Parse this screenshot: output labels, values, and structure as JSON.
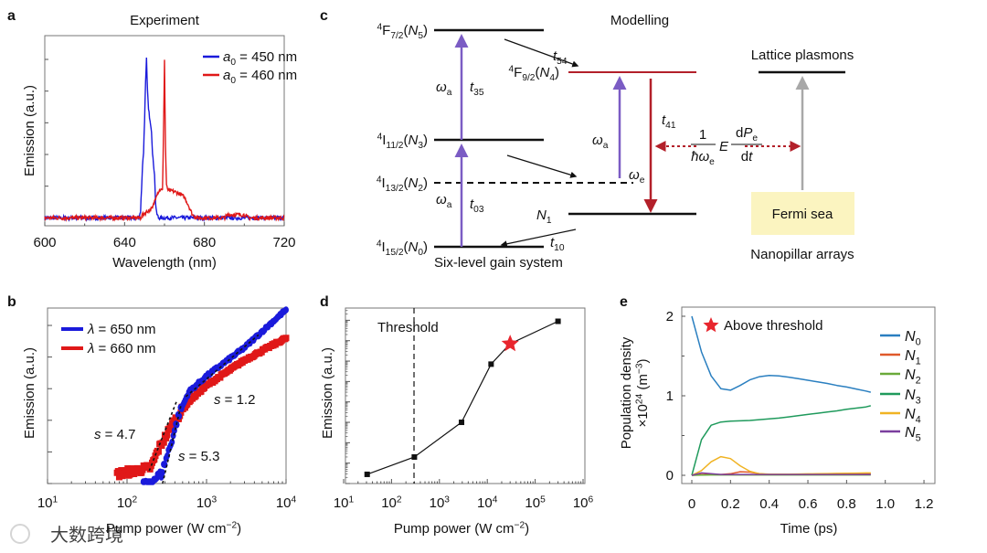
{
  "panel_letters": [
    "a",
    "b",
    "c",
    "d",
    "e"
  ],
  "watermark": "大数跨境",
  "chart_data": [
    {
      "id": "a",
      "type": "line",
      "title": "Experiment",
      "xlabel": [
        [
          "Wavelength (nm)",
          ""
        ]
      ],
      "ylabel": [
        [
          "Emission (a.u.)",
          ""
        ]
      ],
      "xlim": [
        600,
        720
      ],
      "ylim": [
        -0.05,
        1.15
      ],
      "xticks": [
        600,
        640,
        680,
        720
      ],
      "grid": false,
      "legend_position": "top-right",
      "series": [
        {
          "name": [
            [
              "a",
              "i"
            ],
            [
              "0",
              "sub"
            ],
            [
              " = 450 nm",
              ""
            ]
          ],
          "color": "#1a1adb",
          "x": [
            600,
            647,
            648,
            649,
            649.5,
            650,
            650.5,
            651,
            651.5,
            652,
            653,
            653.5,
            654,
            655,
            655.5,
            656,
            657,
            720
          ],
          "y": [
            0,
            0,
            0.04,
            0.33,
            0.42,
            0.6,
            0.85,
            1.0,
            0.8,
            0.68,
            0.6,
            0.55,
            0.4,
            0.28,
            0.1,
            0.03,
            0,
            0
          ]
        },
        {
          "name": [
            [
              "a",
              "i"
            ],
            [
              "0",
              "sub"
            ],
            [
              " = 460 nm",
              ""
            ]
          ],
          "color": "#e01818",
          "x": [
            600,
            648,
            650,
            654,
            656,
            658,
            659,
            659.5,
            660,
            660.5,
            661,
            662,
            664,
            668,
            670,
            672,
            674,
            676,
            690,
            692,
            700,
            702,
            720
          ],
          "y": [
            0,
            0,
            0.03,
            0.06,
            0.15,
            0.18,
            0.17,
            0.55,
            1.0,
            0.45,
            0.2,
            0.17,
            0.17,
            0.15,
            0.13,
            0.08,
            0.02,
            0,
            0,
            0.02,
            0.02,
            0,
            0
          ]
        }
      ]
    },
    {
      "id": "b",
      "type": "scatter",
      "xlabel": [
        [
          "Pump power (W cm",
          ""
        ],
        [
          "−2",
          "sup"
        ],
        [
          ")",
          ""
        ]
      ],
      "ylabel": [
        [
          "Emission (a.u.)",
          ""
        ]
      ],
      "xscale": "log",
      "xlim": [
        10,
        10000
      ],
      "ylim_log_decades": [
        0,
        5.55
      ],
      "xticks": [
        [
          [
            "10",
            ""
          ],
          [
            "1",
            "sup"
          ]
        ],
        [
          [
            "10",
            ""
          ],
          [
            "2",
            "sup"
          ]
        ],
        [
          [
            "10",
            ""
          ],
          [
            "3",
            "sup"
          ]
        ],
        [
          [
            "10",
            ""
          ],
          [
            "4",
            "sup"
          ]
        ]
      ],
      "legend_position": "top-left",
      "series": [
        {
          "name": [
            [
              "λ",
              "i"
            ],
            [
              " = 650 nm",
              ""
            ]
          ],
          "color": "#1a1adb",
          "marker": "circle",
          "x": [
            160,
            270,
            350,
            450,
            600,
            1000,
            3000,
            10000
          ],
          "y_log": [
            -0.1,
            0.3,
            1.2,
            2.2,
            2.9,
            3.4,
            4.3,
            5.5
          ]
        },
        {
          "name": [
            [
              "λ",
              "i"
            ],
            [
              " = 660 nm",
              ""
            ]
          ],
          "color": "#e01818",
          "marker": "square",
          "x": [
            75,
            200,
            250,
            400,
            600,
            1000,
            3000,
            10000
          ],
          "y_log": [
            0.3,
            0.5,
            1.1,
            2.0,
            2.6,
            3.1,
            3.9,
            4.6
          ]
        }
      ],
      "fits": [
        {
          "label": [
            [
              "s",
              "i"
            ],
            [
              " = 4.7",
              ""
            ]
          ],
          "x": [
            190,
            420
          ],
          "y_log": [
            0.4,
            2.6
          ]
        },
        {
          "label": [
            [
              "s",
              "i"
            ],
            [
              " = 5.3",
              ""
            ]
          ],
          "x": [
            280,
            480
          ],
          "y_log": [
            0.0,
            2.5
          ]
        },
        {
          "label": [
            [
              "s",
              "i"
            ],
            [
              " = 1.2",
              ""
            ]
          ],
          "x": [
            550,
            4500
          ],
          "y_log": [
            2.75,
            4.7
          ]
        }
      ]
    },
    {
      "id": "d",
      "type": "line",
      "xlabel": [
        [
          "Pump power (W cm",
          ""
        ],
        [
          "−2",
          "sup"
        ],
        [
          ")",
          ""
        ]
      ],
      "ylabel": [
        [
          "Emission (a.u.)",
          ""
        ]
      ],
      "xscale": "log",
      "xlim": [
        10,
        1000000
      ],
      "ylim_log_decades": [
        0,
        8.6
      ],
      "xticks": [
        [
          [
            "10",
            ""
          ],
          [
            "1",
            "sup"
          ]
        ],
        [
          [
            "10",
            ""
          ],
          [
            "2",
            "sup"
          ]
        ],
        [
          [
            "10",
            ""
          ],
          [
            "3",
            "sup"
          ]
        ],
        [
          [
            "10",
            ""
          ],
          [
            "4",
            "sup"
          ]
        ],
        [
          [
            "10",
            ""
          ],
          [
            "5",
            "sup"
          ]
        ],
        [
          [
            "10",
            ""
          ],
          [
            "6",
            "sup"
          ]
        ]
      ],
      "threshold": {
        "label": "Threshold",
        "x": 295
      },
      "x": [
        31,
        300,
        2900,
        12000,
        30000,
        300000
      ],
      "y_log": [
        0.45,
        1.3,
        3.0,
        5.85,
        6.85,
        7.95
      ],
      "star_index": 4,
      "color": "#111111",
      "star_color": "#e8262e"
    },
    {
      "id": "e",
      "type": "line",
      "xlabel": [
        [
          "Time (ps)",
          ""
        ]
      ],
      "ylabel": [
        [
          "Population density",
          ""
        ]
      ],
      "ylabel2": [
        [
          "×10",
          ""
        ],
        [
          "24",
          "sup"
        ],
        [
          " (m",
          ""
        ],
        [
          "−3",
          "sup"
        ],
        [
          ")",
          ""
        ]
      ],
      "xlim": [
        -0.02,
        1.28
      ],
      "ylim": [
        -0.1,
        2.1
      ],
      "xticks": [
        "0",
        "0.2",
        "0.4",
        "0.6",
        "0.8",
        "1.0",
        "1.2"
      ],
      "yticks": [
        "0",
        "1",
        "2"
      ],
      "annotation": "Above threshold",
      "legend_position": "right",
      "t": [
        0,
        0.05,
        0.1,
        0.15,
        0.2,
        0.25,
        0.3,
        0.35,
        0.4,
        0.45,
        0.5,
        0.55,
        0.6,
        0.65,
        0.7,
        0.75,
        0.8,
        0.85,
        0.9,
        0.925
      ],
      "series": [
        {
          "name": [
            [
              "N",
              "i"
            ],
            [
              "0",
              "sub"
            ]
          ],
          "color": "#2a7fc0",
          "y": [
            2.0,
            1.55,
            1.25,
            1.09,
            1.07,
            1.13,
            1.2,
            1.24,
            1.255,
            1.25,
            1.235,
            1.215,
            1.195,
            1.175,
            1.155,
            1.13,
            1.11,
            1.085,
            1.06,
            1.045
          ]
        },
        {
          "name": [
            [
              "N",
              "i"
            ],
            [
              "1",
              "sub"
            ]
          ],
          "color": "#e0592a",
          "y": [
            0,
            0.01,
            0.01,
            0.01,
            0.02,
            0.045,
            0.04,
            0.02,
            0.01,
            0.01,
            0.01,
            0.01,
            0.012,
            0.014,
            0.015,
            0.016,
            0.017,
            0.018,
            0.02,
            0.02
          ]
        },
        {
          "name": [
            [
              "N",
              "i"
            ],
            [
              "2",
              "sub"
            ]
          ],
          "color": "#6aaa3a",
          "y": [
            0,
            0.004,
            0.005,
            0.005,
            0.005,
            0.005,
            0.005,
            0.005,
            0.005,
            0.005,
            0.005,
            0.005,
            0.005,
            0.005,
            0.005,
            0.005,
            0.005,
            0.005,
            0.005,
            0.005
          ]
        },
        {
          "name": [
            [
              "N",
              "i"
            ],
            [
              "3",
              "sub"
            ]
          ],
          "color": "#1f9a5c",
          "y": [
            0,
            0.45,
            0.63,
            0.67,
            0.68,
            0.685,
            0.69,
            0.7,
            0.71,
            0.72,
            0.735,
            0.75,
            0.765,
            0.78,
            0.795,
            0.81,
            0.83,
            0.845,
            0.86,
            0.875
          ]
        },
        {
          "name": [
            [
              "N",
              "i"
            ],
            [
              "4",
              "sub"
            ]
          ],
          "color": "#f0b323",
          "y": [
            0,
            0.06,
            0.17,
            0.235,
            0.21,
            0.12,
            0.05,
            0.02,
            0.015,
            0.015,
            0.015,
            0.016,
            0.018,
            0.02,
            0.022,
            0.024,
            0.026,
            0.028,
            0.03,
            0.03
          ]
        },
        {
          "name": [
            [
              "N",
              "i"
            ],
            [
              "5",
              "sub"
            ]
          ],
          "color": "#7b3f9e",
          "y": [
            0,
            0.03,
            0.02,
            0.01,
            0.01,
            0.01,
            0.01,
            0.01,
            0.01,
            0.01,
            0.01,
            0.01,
            0.01,
            0.01,
            0.01,
            0.01,
            0.01,
            0.01,
            0.01,
            0.01
          ]
        }
      ]
    }
  ],
  "diagram": {
    "title": "Modelling",
    "subtitle_left": "Six-level gain system",
    "subtitle_right": "Nanopillar arrays",
    "lattice_label": "Lattice plasmons",
    "fermi_label": "Fermi sea",
    "levels": {
      "N5": [
        [
          "4",
          "sup"
        ],
        [
          "F",
          ""
        ],
        [
          "7/2",
          "sub"
        ],
        [
          "(",
          ""
        ],
        [
          "N",
          "i"
        ],
        [
          "5",
          "sub"
        ],
        [
          ")",
          ""
        ]
      ],
      "N4": [
        [
          "4",
          "sup"
        ],
        [
          "F",
          ""
        ],
        [
          "9/2",
          "sub"
        ],
        [
          "(",
          ""
        ],
        [
          "N",
          "i"
        ],
        [
          "4",
          "sub"
        ],
        [
          ")",
          ""
        ]
      ],
      "N3": [
        [
          "4",
          "sup"
        ],
        [
          "I",
          ""
        ],
        [
          "11/2",
          "sub"
        ],
        [
          "(",
          ""
        ],
        [
          "N",
          "i"
        ],
        [
          "3",
          "sub"
        ],
        [
          ")",
          ""
        ]
      ],
      "N2": [
        [
          "4",
          "sup"
        ],
        [
          "I",
          ""
        ],
        [
          "13/2",
          "sub"
        ],
        [
          "(",
          ""
        ],
        [
          "N",
          "i"
        ],
        [
          "2",
          "sub"
        ],
        [
          ")",
          ""
        ]
      ],
      "N0": [
        [
          "4",
          "sup"
        ],
        [
          "I",
          ""
        ],
        [
          "15/2",
          "sub"
        ],
        [
          "(",
          ""
        ],
        [
          "N",
          "i"
        ],
        [
          "0",
          "sub"
        ],
        [
          ")",
          ""
        ]
      ],
      "N1": [
        [
          "N",
          "i"
        ],
        [
          "1",
          "sub"
        ]
      ]
    },
    "rates": {
      "t54": [
        [
          "t",
          "i"
        ],
        [
          "54",
          "sub"
        ]
      ],
      "t35": [
        [
          "t",
          "i"
        ],
        [
          "35",
          "sub"
        ]
      ],
      "t41": [
        [
          "t",
          "i"
        ],
        [
          "41",
          "sub"
        ]
      ],
      "t03": [
        [
          "t",
          "i"
        ],
        [
          "03",
          "sub"
        ]
      ],
      "t10": [
        [
          "t",
          "i"
        ],
        [
          "10",
          "sub"
        ]
      ],
      "wa": [
        [
          "ω",
          "i"
        ],
        [
          "a",
          "sub"
        ]
      ],
      "we": [
        [
          "ω",
          "i"
        ],
        [
          "e",
          "sub"
        ]
      ]
    },
    "coupling": {
      "num": "1",
      "den": [
        [
          "ħω",
          "i"
        ],
        [
          "e",
          "sub"
        ]
      ],
      "E": "E",
      "dnum": [
        [
          "d",
          ""
        ],
        [
          "P",
          "i"
        ],
        [
          "e",
          "sub"
        ]
      ],
      "dden": [
        [
          "d",
          ""
        ],
        [
          "t",
          "i"
        ]
      ]
    },
    "colors": {
      "pump": "#7b5cc4",
      "emission": "#b3202a",
      "plasmon": "#a8a8a8",
      "fermi_bg": "#fbf4c0"
    }
  }
}
